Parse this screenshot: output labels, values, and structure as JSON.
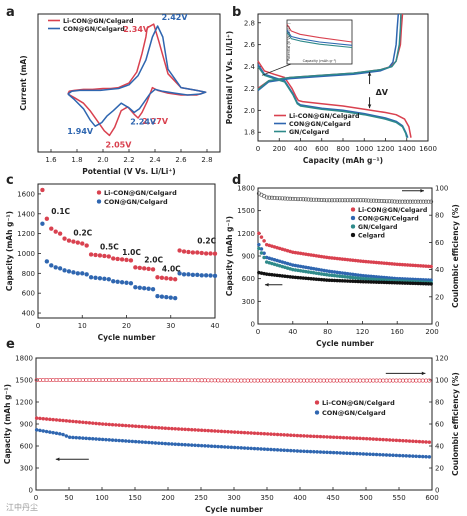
{
  "figure": {
    "watermark": "江中丹尘"
  },
  "chart_data": [
    {
      "panel": "a",
      "type": "line",
      "xlabel": "Potential (V Vs. Li/Li⁺)",
      "ylabel": "Current (mA)",
      "xlim": [
        1.5,
        2.9
      ],
      "ylim": [
        -0.65,
        0.85
      ],
      "xticks": [
        "1.6",
        "1.8",
        "2.0",
        "2.2",
        "2.4",
        "2.6",
        "2.8"
      ],
      "series": [
        {
          "name": "Li-CON@GN/Celgard",
          "color": "#d9414f",
          "x": [
            1.73,
            1.78,
            1.85,
            1.9,
            1.96,
            2.01,
            2.05,
            2.09,
            2.14,
            2.19,
            2.24,
            2.27,
            2.3,
            2.34,
            2.38,
            2.42,
            2.5,
            2.6,
            2.72,
            2.79,
            2.72,
            2.6,
            2.5,
            2.43,
            2.39,
            2.34,
            2.33,
            2.3,
            2.26,
            2.2,
            2.12,
            2.06,
            2.0,
            1.92,
            1.85,
            1.78,
            1.74,
            1.73
          ],
          "y": [
            -0.02,
            -0.06,
            -0.12,
            -0.2,
            -0.32,
            -0.42,
            -0.47,
            -0.38,
            -0.2,
            -0.16,
            -0.24,
            -0.28,
            -0.22,
            -0.1,
            0.05,
            0.02,
            -0.01,
            -0.03,
            -0.03,
            0.0,
            0.02,
            0.05,
            0.2,
            0.55,
            0.74,
            0.7,
            0.6,
            0.42,
            0.22,
            0.1,
            0.05,
            0.04,
            0.04,
            0.03,
            0.03,
            0.02,
            0.01,
            -0.02
          ],
          "annotations": [
            {
              "text": "2.34V",
              "x": 2.34,
              "y": 0.7
            },
            {
              "text": "2.27V",
              "x": 2.27,
              "y": -0.28
            },
            {
              "text": "2.05V",
              "x": 2.05,
              "y": -0.47
            }
          ]
        },
        {
          "name": "CON@GN/Celgard",
          "color": "#2f66b0",
          "x": [
            1.73,
            1.78,
            1.85,
            1.9,
            1.94,
            1.99,
            2.03,
            2.08,
            2.14,
            2.2,
            2.24,
            2.28,
            2.32,
            2.36,
            2.4,
            2.46,
            2.55,
            2.65,
            2.75,
            2.79,
            2.72,
            2.6,
            2.5,
            2.46,
            2.42,
            2.38,
            2.33,
            2.27,
            2.2,
            2.12,
            2.05,
            1.98,
            1.9,
            1.82,
            1.76,
            1.73
          ],
          "y": [
            -0.02,
            -0.08,
            -0.18,
            -0.3,
            -0.37,
            -0.33,
            -0.26,
            -0.2,
            -0.12,
            -0.17,
            -0.22,
            -0.18,
            -0.1,
            -0.02,
            0.03,
            0.01,
            -0.01,
            -0.03,
            -0.02,
            0.0,
            0.02,
            0.05,
            0.25,
            0.6,
            0.72,
            0.6,
            0.35,
            0.18,
            0.08,
            0.04,
            0.03,
            0.02,
            0.02,
            0.02,
            0.01,
            -0.02
          ],
          "annotations": [
            {
              "text": "2.42V",
              "x": 2.42,
              "y": 0.72
            },
            {
              "text": "2.24V",
              "x": 2.24,
              "y": -0.22
            },
            {
              "text": "1.94V",
              "x": 1.94,
              "y": -0.37
            }
          ]
        }
      ]
    },
    {
      "panel": "b",
      "type": "line",
      "xlabel": "Capacity (mAh g⁻¹)",
      "ylabel": "Potential (V Vs. Li/Li⁺)",
      "xlim": [
        0,
        1600
      ],
      "ylim": [
        1.72,
        2.88
      ],
      "xticks": [
        "0",
        "200",
        "400",
        "600",
        "800",
        "1000",
        "1200",
        "1400",
        "1600"
      ],
      "yticks": [
        "1.8",
        "2.0",
        "2.2",
        "2.4",
        "2.6",
        "2.8"
      ],
      "annotation": "ΔV",
      "series": [
        {
          "name": "Li-CON@GN/Celgard",
          "color": "#d9414f",
          "discharge": {
            "x": [
              0,
              60,
              150,
              250,
              320,
              360,
              380,
              420,
              600,
              800,
              1000,
              1200,
              1300,
              1380,
              1420,
              1440
            ],
            "y": [
              2.45,
              2.36,
              2.33,
              2.3,
              2.2,
              2.12,
              2.09,
              2.08,
              2.06,
              2.04,
              2.01,
              1.98,
              1.96,
              1.92,
              1.85,
              1.75
            ]
          },
          "charge": {
            "x": [
              0,
              100,
              300,
              600,
              900,
              1150,
              1250,
              1300,
              1340,
              1350,
              1360
            ],
            "y": [
              2.2,
              2.27,
              2.3,
              2.32,
              2.34,
              2.37,
              2.4,
              2.45,
              2.6,
              2.75,
              2.88
            ]
          }
        },
        {
          "name": "CON@GN/Celgard",
          "color": "#2f66b0",
          "discharge": {
            "x": [
              0,
              60,
              150,
              250,
              330,
              370,
              400,
              600,
              800,
              1000,
              1200,
              1300,
              1360,
              1390,
              1410
            ],
            "y": [
              2.42,
              2.33,
              2.3,
              2.27,
              2.15,
              2.07,
              2.05,
              2.02,
              2.0,
              1.97,
              1.93,
              1.9,
              1.86,
              1.8,
              1.75
            ]
          },
          "charge": {
            "x": [
              0,
              100,
              300,
              600,
              900,
              1150,
              1230,
              1270,
              1300,
              1310,
              1320
            ],
            "y": [
              2.18,
              2.26,
              2.29,
              2.31,
              2.33,
              2.36,
              2.39,
              2.44,
              2.6,
              2.75,
              2.88
            ]
          }
        },
        {
          "name": "GN/Celgard",
          "color": "#2e8a8a",
          "discharge": {
            "x": [
              0,
              60,
              150,
              250,
              330,
              370,
              400,
              600,
              800,
              1000,
              1200,
              1300,
              1360,
              1390,
              1400
            ],
            "y": [
              2.4,
              2.32,
              2.29,
              2.26,
              2.14,
              2.06,
              2.04,
              2.01,
              1.99,
              1.96,
              1.92,
              1.89,
              1.85,
              1.79,
              1.75
            ]
          },
          "charge": {
            "x": [
              0,
              100,
              300,
              600,
              900,
              1150,
              1260,
              1300,
              1330,
              1340,
              1345
            ],
            "y": [
              2.19,
              2.27,
              2.3,
              2.32,
              2.34,
              2.37,
              2.4,
              2.45,
              2.6,
              2.75,
              2.88
            ]
          }
        }
      ],
      "inset": {
        "xlabel": "Capacity (mAh g⁻¹)",
        "ylabel": "Potential (V Vs. Li/Li⁺)"
      }
    },
    {
      "panel": "c",
      "type": "scatter",
      "xlabel": "Cycle number",
      "ylabel": "Capacity (mAh g⁻¹)",
      "xlim": [
        0,
        40
      ],
      "ylim": [
        350,
        1700
      ],
      "xticks": [
        "0",
        "10",
        "20",
        "30",
        "40"
      ],
      "yticks": [
        "400",
        "600",
        "800",
        "1000",
        "1200",
        "1400",
        "1600"
      ],
      "rate_labels": [
        "0.1C",
        "0.2C",
        "0.5C",
        "1.0C",
        "2.0C",
        "4.0C",
        "0.2C"
      ],
      "series": [
        {
          "name": "Li-CON@GN/Celgard",
          "color": "#d9414f",
          "y": [
            1640,
            1350,
            1250,
            1220,
            1200,
            1150,
            1130,
            1120,
            1110,
            1100,
            1080,
            990,
            985,
            980,
            975,
            970,
            950,
            945,
            940,
            935,
            930,
            860,
            855,
            850,
            845,
            840,
            760,
            755,
            750,
            745,
            740,
            1030,
            1020,
            1015,
            1010,
            1010,
            1005,
            1000,
            1000,
            998
          ]
        },
        {
          "name": "CON@GN/Celgard",
          "color": "#2f66b0",
          "y": [
            1300,
            920,
            880,
            860,
            850,
            830,
            820,
            810,
            800,
            800,
            790,
            760,
            755,
            750,
            745,
            740,
            720,
            715,
            710,
            705,
            700,
            660,
            655,
            650,
            645,
            640,
            570,
            565,
            560,
            555,
            550,
            800,
            790,
            790,
            785,
            785,
            780,
            780,
            778,
            775
          ]
        }
      ]
    },
    {
      "panel": "d",
      "type": "scatter",
      "xlabel": "Cycle number",
      "ylabel": "Capacity (mAh g⁻¹)",
      "y2label": "Coulombic efficiency (%)",
      "xlim": [
        0,
        200
      ],
      "ylim": [
        0,
        1800
      ],
      "y2lim": [
        0,
        100
      ],
      "xticks": [
        "0",
        "40",
        "80",
        "120",
        "160",
        "200"
      ],
      "yticks": [
        "0",
        "300",
        "600",
        "900",
        "1200",
        "1500",
        "1800"
      ],
      "y2ticks": [
        "0",
        "20",
        "40",
        "60",
        "80",
        "100"
      ],
      "series": [
        {
          "name": "Li-CON@GN/Celgard",
          "color": "#d9414f",
          "capacity": {
            "x": [
              1,
              10,
              40,
              80,
              120,
              160,
              200
            ],
            "y": [
              1200,
              1050,
              950,
              880,
              830,
              790,
              760
            ]
          }
        },
        {
          "name": "CON@GN/Celgard",
          "color": "#2f66b0",
          "capacity": {
            "x": [
              1,
              10,
              40,
              80,
              120,
              160,
              200
            ],
            "y": [
              1050,
              880,
              780,
              700,
              640,
              600,
              580
            ]
          }
        },
        {
          "name": "GN/Celgard",
          "color": "#2e8a8a",
          "capacity": {
            "x": [
              1,
              10,
              40,
              80,
              120,
              160,
              200
            ],
            "y": [
              1000,
              820,
              720,
              650,
              600,
              570,
              550
            ]
          }
        },
        {
          "name": "Celgard",
          "color": "#111111",
          "capacity": {
            "x": [
              1,
              10,
              40,
              80,
              120,
              160,
              200
            ],
            "y": [
              680,
              660,
              620,
              580,
              560,
              545,
              530
            ]
          }
        }
      ],
      "coulombic_efficiency": {
        "x": [
          1,
          10,
          40,
          80,
          120,
          160,
          200
        ],
        "y": [
          96,
          93,
          92,
          91,
          91,
          90,
          90
        ]
      }
    },
    {
      "panel": "e",
      "type": "scatter",
      "xlabel": "Cycle number",
      "ylabel": "Capacity (mAh g⁻¹)",
      "y2label": "Coulombic efficiency (%)",
      "xlim": [
        0,
        600
      ],
      "ylim": [
        0,
        1800
      ],
      "y2lim": [
        0,
        120
      ],
      "xticks": [
        "0",
        "50",
        "100",
        "150",
        "200",
        "250",
        "300",
        "350",
        "400",
        "450",
        "500",
        "550",
        "600"
      ],
      "yticks": [
        "0",
        "300",
        "600",
        "900",
        "1200",
        "1500",
        "1800"
      ],
      "y2ticks": [
        "0",
        "20",
        "40",
        "60",
        "80",
        "100",
        "120"
      ],
      "series": [
        {
          "name": "Li-CON@GN/Celgard",
          "color": "#d9414f",
          "capacity": {
            "x": [
              1,
              50,
              100,
              200,
              300,
              400,
              500,
              600
            ],
            "y": [
              980,
              940,
              900,
              840,
              790,
              740,
              700,
              650
            ]
          }
        },
        {
          "name": "CON@GN/Celgard",
          "color": "#2f66b0",
          "capacity": {
            "x": [
              1,
              40,
              50,
              100,
              200,
              300,
              400,
              500,
              600
            ],
            "y": [
              820,
              760,
              720,
              690,
              630,
              580,
              530,
              490,
              450
            ]
          }
        }
      ],
      "coulombic_efficiency": {
        "x": [
          1,
          100,
          200,
          300,
          400,
          500,
          600
        ],
        "y": [
          100,
          100,
          100,
          99.5,
          99.5,
          99.5,
          99.5
        ]
      }
    }
  ]
}
